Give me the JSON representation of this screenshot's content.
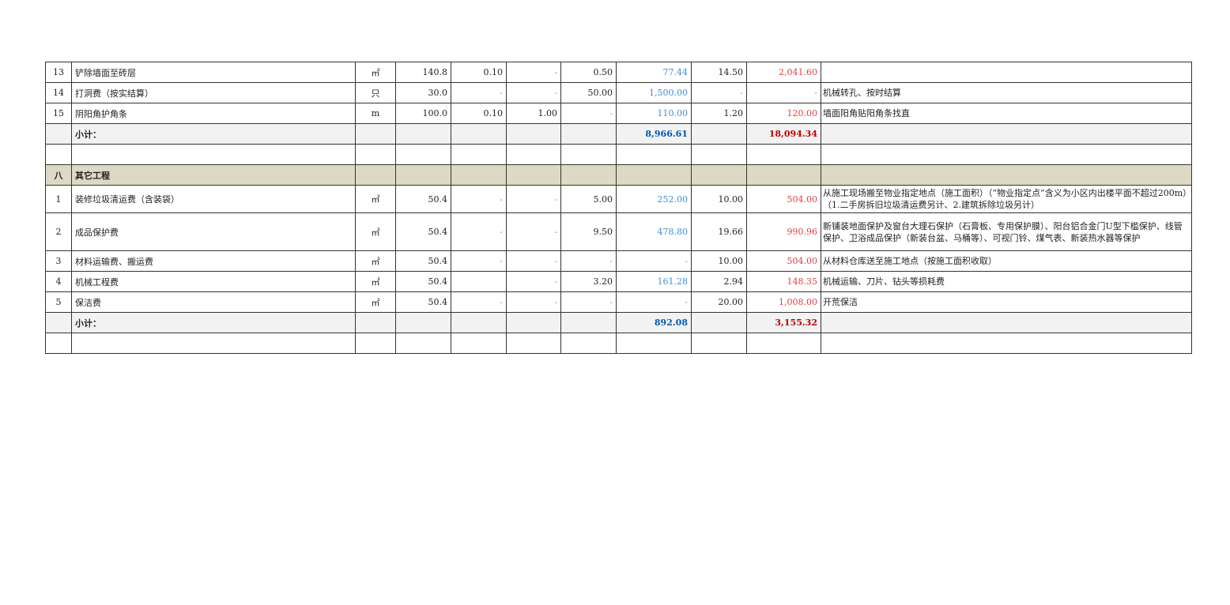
{
  "rows": [
    {
      "type": "item",
      "no": "13",
      "name": "铲除墙面至砖层",
      "unit": "㎡",
      "qty": "140.8",
      "c1": "0.10",
      "c2": "-",
      "c3": "0.50",
      "c4": "77.44",
      "c5": "14.50",
      "c6": "2,041.60",
      "note": ""
    },
    {
      "type": "item",
      "no": "14",
      "name": "打洞费（按实结算）",
      "unit": "只",
      "qty": "30.0",
      "c1": "-",
      "c2": "-",
      "c3": "50.00",
      "c4": "1,500.00",
      "c5": "-",
      "c6": "-",
      "note": "机械转孔、按时结算"
    },
    {
      "type": "item",
      "no": "15",
      "name": "阴阳角护角条",
      "unit": "m",
      "qty": "100.0",
      "c1": "0.10",
      "c2": "1.00",
      "c3": "-",
      "c4": "110.00",
      "c5": "1.20",
      "c6": "120.00",
      "note": "墙面阳角贴阳角条找直"
    },
    {
      "type": "sub",
      "name": "小计：",
      "c4": "8,966.61",
      "c6": "18,094.34"
    },
    {
      "type": "blank"
    },
    {
      "type": "sec",
      "no": "八",
      "name": "其它工程"
    },
    {
      "type": "item",
      "h": 2,
      "no": "1",
      "name": "装修垃圾清运费（含装袋）",
      "unit": "㎡",
      "qty": "50.4",
      "c1": "-",
      "c2": "-",
      "c3": "5.00",
      "c4": "252.00",
      "c5": "10.00",
      "c6": "504.00",
      "note": "从施工现场搬至物业指定地点（施工面积）（“物业指定点”含义为小区内出楼平面不超过200m）（1.二手房拆旧垃圾清运费另计、2.建筑拆除垃圾另计）"
    },
    {
      "type": "item",
      "h": 3,
      "no": "2",
      "name": "成品保护费",
      "unit": "㎡",
      "qty": "50.4",
      "c1": "-",
      "c2": "-",
      "c3": "9.50",
      "c4": "478.80",
      "c5": "19.66",
      "c6": "990.96",
      "note": "新铺装地面保护及窗台大理石保护（石膏板、专用保护膜）、阳台铝合金门U型下槛保护、线管保护、卫浴成品保护（新装台盆、马桶等）、可视门铃、煤气表、新装热水器等保护"
    },
    {
      "type": "item",
      "no": "3",
      "name": "材料运输费、搬运费",
      "unit": "㎡",
      "qty": "50.4",
      "c1": "-",
      "c2": "-",
      "c3": "-",
      "c4": "-",
      "c5": "10.00",
      "c6": "504.00",
      "note": "从材料仓库送至施工地点（按施工面积收取）"
    },
    {
      "type": "item",
      "no": "4",
      "name": "机械工程费",
      "unit": "㎡",
      "qty": "50.4",
      "c1": "",
      "c2": "-",
      "c3": "3.20",
      "c4": "161.28",
      "c5": "2.94",
      "c6": "148.35",
      "note": "机械运输、刀片、钻头等损耗费"
    },
    {
      "type": "item",
      "no": "5",
      "name": "保洁费",
      "unit": "㎡",
      "qty": "50.4",
      "c1": "-",
      "c2": "-",
      "c3": "-",
      "c4": "-",
      "c5": "20.00",
      "c6": "1,008.00",
      "note": "开荒保洁"
    },
    {
      "type": "sub",
      "name": "小计：",
      "c4": "892.08",
      "c6": "3,155.32"
    },
    {
      "type": "blank"
    }
  ]
}
